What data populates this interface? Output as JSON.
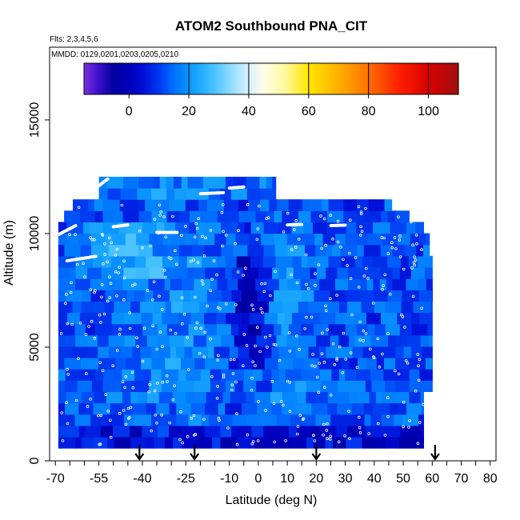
{
  "chart_data": {
    "type": "heatmap",
    "title": "ATOM2 Southbound PNA_CIT",
    "flights_label": "Flts: 2,3,4,5,6",
    "dates_label": "MMDD: 0129,0201,0203,0205,0210",
    "xlabel": "Latitude (deg N)",
    "ylabel": "Altitude (m)",
    "xlim": [
      -72,
      82
    ],
    "ylim": [
      0,
      18200
    ],
    "x_ticks": [
      "-70",
      "-55",
      "-40",
      "-25",
      "-10",
      "0",
      "10",
      "20",
      "30",
      "40",
      "50",
      "60",
      "70",
      "80"
    ],
    "x_tick_values": [
      -70,
      -55,
      -40,
      -25,
      -10,
      0,
      10,
      20,
      30,
      40,
      50,
      60,
      70,
      80
    ],
    "y_ticks": [
      "0",
      "5000",
      "10000",
      "15000"
    ],
    "y_tick_values": [
      0,
      5000,
      10000,
      15000
    ],
    "colorbar": {
      "range": [
        -15,
        110
      ],
      "tick_labels": [
        "0",
        "20",
        "40",
        "60",
        "80",
        "100"
      ],
      "tick_values": [
        0,
        20,
        40,
        60,
        80,
        100
      ],
      "line_values": [
        20,
        40,
        60,
        80,
        100
      ],
      "stops": [
        {
          "v": -15,
          "color": "#7b2fe0"
        },
        {
          "v": -10,
          "color": "#3a10c8"
        },
        {
          "v": -5,
          "color": "#0000a0"
        },
        {
          "v": 0,
          "color": "#0000b8"
        },
        {
          "v": 5,
          "color": "#0010d8"
        },
        {
          "v": 10,
          "color": "#0038f0"
        },
        {
          "v": 15,
          "color": "#0070ff"
        },
        {
          "v": 20,
          "color": "#0a96ff"
        },
        {
          "v": 25,
          "color": "#29b2ff"
        },
        {
          "v": 30,
          "color": "#5ccaff"
        },
        {
          "v": 35,
          "color": "#9ce0ff"
        },
        {
          "v": 40,
          "color": "#d8f0ff"
        },
        {
          "v": 45,
          "color": "#fffde8"
        },
        {
          "v": 52,
          "color": "#fff8a0"
        },
        {
          "v": 60,
          "color": "#ffe600"
        },
        {
          "v": 70,
          "color": "#ffb000"
        },
        {
          "v": 80,
          "color": "#ff7000"
        },
        {
          "v": 90,
          "color": "#ff2000"
        },
        {
          "v": 100,
          "color": "#d80000"
        },
        {
          "v": 110,
          "color": "#a01010"
        }
      ]
    },
    "latitude_markers": [
      -41,
      -22,
      20,
      61
    ]
  }
}
